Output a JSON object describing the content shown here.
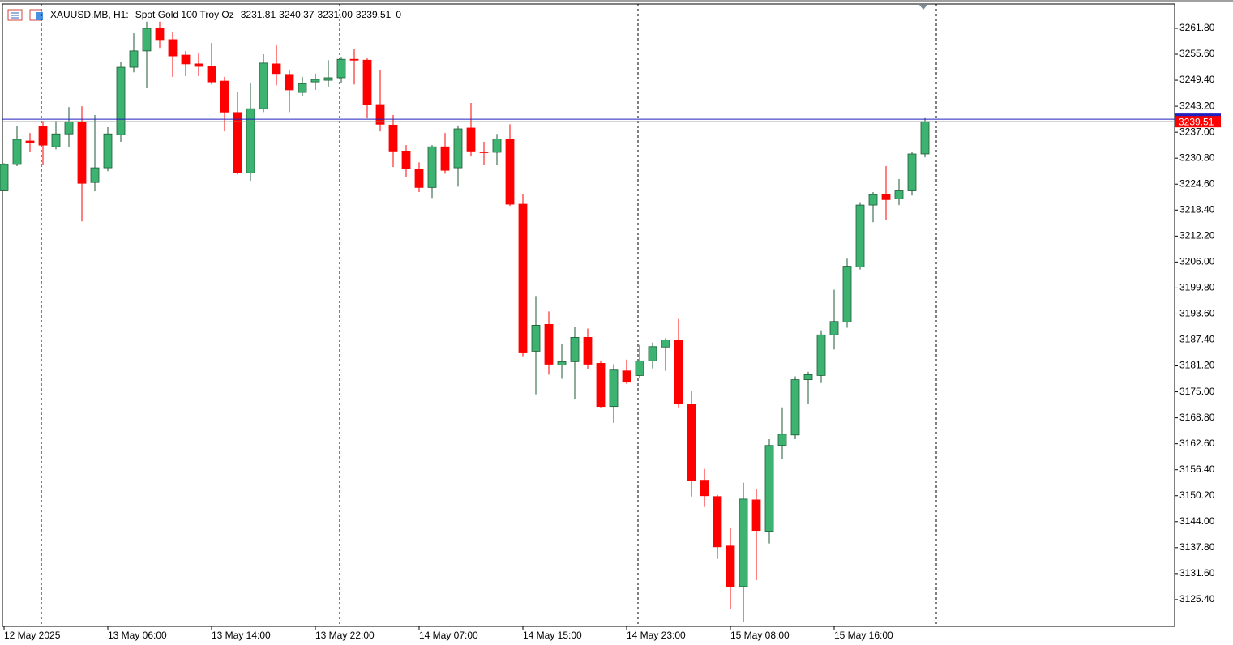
{
  "chart_data": {
    "type": "candlestick",
    "header": {
      "symbol": "XAUUSD.MB, H1:",
      "description": "Spot Gold 100 Troy Oz",
      "values": [
        "3231.81",
        "3240.37",
        "3231.00",
        "3239.51",
        "0"
      ]
    },
    "categories": [
      "12 May 2025",
      null,
      null,
      null,
      null,
      null,
      null,
      null,
      "13 May 06:00",
      null,
      null,
      null,
      null,
      null,
      null,
      null,
      "13 May 14:00",
      null,
      null,
      null,
      null,
      null,
      null,
      null,
      "13 May 22:00",
      null,
      null,
      null,
      null,
      null,
      null,
      null,
      "14 May 07:00",
      null,
      null,
      null,
      null,
      null,
      null,
      null,
      "14 May 15:00",
      null,
      null,
      null,
      null,
      null,
      null,
      null,
      "14 May 23:00",
      null,
      null,
      null,
      null,
      null,
      null,
      null,
      "15 May 08:00",
      null,
      null,
      null,
      null,
      null,
      null,
      null,
      "15 May 16:00",
      null,
      null,
      null,
      null,
      null,
      null,
      null
    ],
    "open": [
      3223.0,
      3229.3,
      3234.9,
      3238.4,
      3233.5,
      3236.6,
      3239.5,
      3225.0,
      3228.5,
      3236.4,
      3252.5,
      3256.4,
      3261.8,
      3259.1,
      3255.4,
      3253.3,
      3252.7,
      3249.2,
      3241.7,
      3227.3,
      3242.6,
      3253.3,
      3250.8,
      3246.5,
      3249.0,
      3249.4,
      3250.0,
      3254.4,
      3254.2,
      3243.6,
      3238.7,
      3232.5,
      3228.1,
      3223.8,
      3233.5,
      3228.5,
      3238.0,
      3232.3,
      3232.2,
      3235.4,
      3219.8,
      3184.7,
      3191.1,
      3181.4,
      3182.2,
      3188.0,
      3181.8,
      3171.5,
      3180.0,
      3178.9,
      3182.4,
      3185.7,
      3187.4,
      3172.1,
      3153.9,
      3150.0,
      3138.2,
      3128.5,
      3149.2,
      3141.7,
      3162.2,
      3164.7,
      3177.9,
      3178.9,
      3188.6,
      3191.7,
      3204.8,
      3219.6,
      3222.1,
      3221.1,
      3223.0,
      3231.81
    ],
    "high": [
      3229.6,
      3238.4,
      3236.8,
      3239.7,
      3239.7,
      3243.0,
      3243.2,
      3241.1,
      3238.2,
      3253.7,
      3260.6,
      3263.4,
      3263.4,
      3261.0,
      3256.4,
      3256.0,
      3258.3,
      3250.2,
      3246.7,
      3248.8,
      3255.6,
      3257.7,
      3251.7,
      3250.2,
      3251.0,
      3254.2,
      3255.0,
      3256.8,
      3254.6,
      3251.9,
      3241.1,
      3233.9,
      3229.8,
      3233.9,
      3236.8,
      3238.6,
      3244.0,
      3234.7,
      3236.6,
      3238.9,
      3222.3,
      3197.9,
      3194.2,
      3186.4,
      3190.5,
      3190.1,
      3182.5,
      3181.6,
      3182.7,
      3186.2,
      3186.8,
      3187.8,
      3192.4,
      3175.2,
      3156.6,
      3150.4,
      3142.6,
      3153.3,
      3151.7,
      3163.7,
      3171.3,
      3178.7,
      3179.8,
      3189.7,
      3199.4,
      3206.8,
      3220.3,
      3222.7,
      3228.9,
      3225.8,
      3232.3,
      3240.37
    ],
    "low": [
      3222.9,
      3228.9,
      3232.3,
      3229.1,
      3232.9,
      3233.5,
      3215.7,
      3222.9,
      3227.7,
      3234.7,
      3251.3,
      3247.5,
      3257.1,
      3250.2,
      3250.4,
      3250.4,
      3248.4,
      3237.2,
      3226.9,
      3225.4,
      3241.8,
      3248.2,
      3241.8,
      3245.7,
      3247.1,
      3247.9,
      3248.8,
      3248.4,
      3240.3,
      3237.2,
      3228.7,
      3226.2,
      3222.7,
      3221.3,
      3227.1,
      3224.0,
      3231.2,
      3229.1,
      3229.1,
      3219.4,
      3183.5,
      3174.4,
      3179.1,
      3178.1,
      3173.3,
      3180.4,
      3171.3,
      3167.6,
      3176.9,
      3178.3,
      3180.6,
      3180.0,
      3171.3,
      3150.0,
      3147.5,
      3135.1,
      3123.1,
      3120.0,
      3130.0,
      3138.8,
      3158.9,
      3163.7,
      3172.1,
      3177.1,
      3185.1,
      3190.3,
      3204.2,
      3215.5,
      3216.1,
      3219.6,
      3221.9,
      3231.0
    ],
    "close": [
      3229.3,
      3235.3,
      3234.5,
      3233.9,
      3236.6,
      3239.5,
      3224.8,
      3228.5,
      3236.6,
      3252.5,
      3256.4,
      3261.8,
      3259.1,
      3255.2,
      3253.3,
      3252.7,
      3249.0,
      3241.8,
      3227.3,
      3242.6,
      3253.5,
      3251.0,
      3247.1,
      3248.6,
      3249.6,
      3250.0,
      3254.4,
      3254.2,
      3243.6,
      3238.9,
      3232.5,
      3228.3,
      3223.8,
      3233.5,
      3227.9,
      3237.8,
      3232.5,
      3232.2,
      3235.4,
      3219.8,
      3184.3,
      3190.9,
      3181.6,
      3182.2,
      3188.0,
      3181.6,
      3171.5,
      3180.2,
      3177.3,
      3182.4,
      3185.8,
      3187.4,
      3172.1,
      3153.9,
      3150.2,
      3138.0,
      3128.5,
      3149.4,
      3141.9,
      3162.2,
      3164.9,
      3177.9,
      3179.1,
      3188.6,
      3191.8,
      3205.0,
      3219.6,
      3222.1,
      3220.9,
      3223.0,
      3231.8,
      3239.51
    ],
    "up_color": "#3cb371",
    "down_color": "#ff0000",
    "ylim": [
      3119.0,
      3267.6
    ],
    "yticks": [
      {
        "value": 3261.8,
        "label": "3261.80"
      },
      {
        "value": 3255.6,
        "label": "3255.60"
      },
      {
        "value": 3249.4,
        "label": "3249.40"
      },
      {
        "value": 3243.2,
        "label": "3243.20"
      },
      {
        "value": 3237.0,
        "label": "3237.00"
      },
      {
        "value": 3230.8,
        "label": "3230.80"
      },
      {
        "value": 3224.6,
        "label": "3224.60"
      },
      {
        "value": 3218.4,
        "label": "3218.40"
      },
      {
        "value": 3212.2,
        "label": "3212.20"
      },
      {
        "value": 3206.0,
        "label": "3206.00"
      },
      {
        "value": 3199.8,
        "label": "3199.80"
      },
      {
        "value": 3193.6,
        "label": "3193.60"
      },
      {
        "value": 3187.4,
        "label": "3187.40"
      },
      {
        "value": 3181.2,
        "label": "3181.20"
      },
      {
        "value": 3175.0,
        "label": "3175.00"
      },
      {
        "value": 3168.8,
        "label": "3168.80"
      },
      {
        "value": 3162.6,
        "label": "3162.60"
      },
      {
        "value": 3156.4,
        "label": "3156.40"
      },
      {
        "value": 3150.2,
        "label": "3150.20"
      },
      {
        "value": 3144.0,
        "label": "3144.00"
      },
      {
        "value": 3137.8,
        "label": "3137.80"
      },
      {
        "value": 3131.6,
        "label": "3131.60"
      },
      {
        "value": 3125.4,
        "label": "3125.40"
      }
    ],
    "bid_line": {
      "value": 3239.51,
      "label": "3239.51",
      "color": "#8c8c8c"
    },
    "ask_line": {
      "value": 3240.1,
      "color": "#2020c0"
    },
    "grid": false
  }
}
